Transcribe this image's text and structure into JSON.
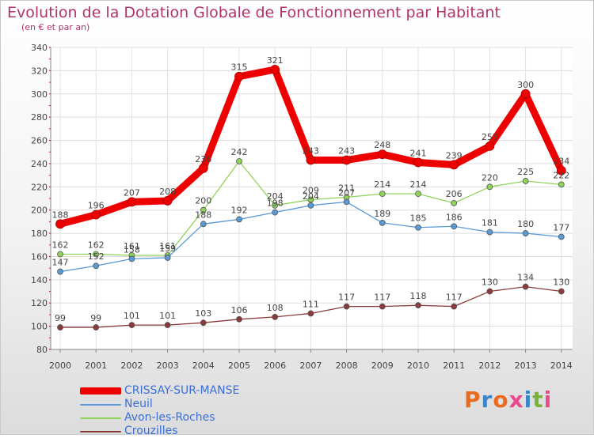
{
  "header": {
    "title": "Evolution de la Dotation Globale de Fonctionnement par Habitant",
    "subtitle": "(en € et par an)"
  },
  "logo": {
    "text": "Proxiti"
  },
  "chart_data": {
    "type": "line",
    "title": "Evolution de la Dotation Globale de Fonctionnement par Habitant",
    "subtitle": "(en € et par an)",
    "xlabel": "",
    "ylabel": "",
    "ylim": [
      80,
      340
    ],
    "ytick_step": 20,
    "grid": true,
    "legend_position": "bottom-left",
    "categories": [
      "2000",
      "2001",
      "2002",
      "2003",
      "2004",
      "2005",
      "2006",
      "2007",
      "2008",
      "2009",
      "2010",
      "2011",
      "2012",
      "2013",
      "2014"
    ],
    "series": [
      {
        "name": "CRISSAY-SUR-MANSE",
        "color": "#ee0000",
        "emphasis": true,
        "values": [
          188,
          196,
          207,
          208,
          236,
          315,
          321,
          243,
          243,
          248,
          241,
          239,
          255,
          300,
          234
        ]
      },
      {
        "name": "Neuil",
        "color": "#5a9ad6",
        "emphasis": false,
        "values": [
          147,
          152,
          158,
          159,
          188,
          192,
          198,
          204,
          207,
          189,
          185,
          186,
          181,
          180,
          177
        ]
      },
      {
        "name": "Avon-les-Roches",
        "color": "#8fd45a",
        "emphasis": false,
        "values": [
          162,
          162,
          161,
          161,
          200,
          242,
          204,
          209,
          211,
          214,
          214,
          206,
          220,
          225,
          222
        ]
      },
      {
        "name": "Crouzilles",
        "color": "#8b3a3a",
        "emphasis": false,
        "values": [
          99,
          99,
          101,
          101,
          103,
          106,
          108,
          111,
          117,
          117,
          118,
          117,
          130,
          134,
          130
        ]
      }
    ]
  }
}
